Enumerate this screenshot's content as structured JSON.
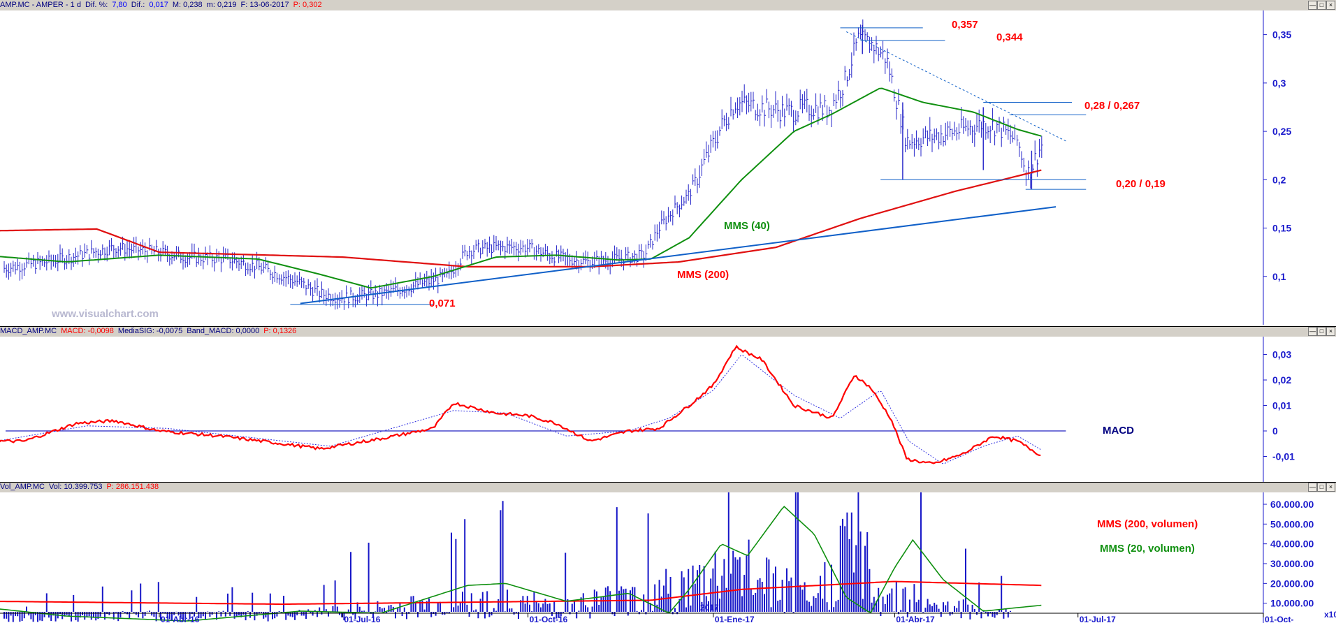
{
  "price_header": [
    {
      "text": "AMP.MC - AMPER - 1 d",
      "cls": "dk"
    },
    {
      "text": "Dif. %:",
      "cls": "dk"
    },
    {
      "text": "7,80",
      "cls": "bl"
    },
    {
      "text": "Dif.:",
      "cls": "dk"
    },
    {
      "text": "0,017",
      "cls": "bl"
    },
    {
      "text": "M: 0,238",
      "cls": "dk"
    },
    {
      "text": "m: 0,219",
      "cls": "dk"
    },
    {
      "text": "F: 13-06-2017",
      "cls": "dk"
    },
    {
      "text": "P: 0,302",
      "cls": "rd"
    }
  ],
  "macd_header": [
    {
      "text": "MACD_AMP.MC",
      "cls": "dk"
    },
    {
      "text": "MACD: -0,0098",
      "cls": "rd"
    },
    {
      "text": "MediaSIG: -0,0075",
      "cls": "dk"
    },
    {
      "text": "Band_MACD: 0,0000",
      "cls": "dk"
    },
    {
      "text": "P: 0,1326",
      "cls": "rd"
    }
  ],
  "vol_header": [
    {
      "text": "Vol_AMP.MC",
      "cls": "dk"
    },
    {
      "text": "Vol: 10.399.753",
      "cls": "dk"
    },
    {
      "text": "P: 286.151.438",
      "cls": "rd"
    }
  ],
  "watermark": "www.visualchart.com",
  "window_buttons": [
    "—",
    "□",
    "×"
  ],
  "x_axis_labels": [
    "01-Abr-16",
    "01-Jul-16",
    "01-Oct-16",
    "01-Ene-17",
    "01-Abr-17",
    "01-Jul-17",
    "01-Oct-"
  ],
  "year_marker": "2017",
  "scale_marker": "x10",
  "annotations": {
    "p357": "0,357",
    "p344": "0,344",
    "p28": "0,28 / 0,267",
    "p20": "0,20 / 0,19",
    "p071": "0,071",
    "mms40": "MMS (40)",
    "mms200": "MMS (200)",
    "macd": "MACD",
    "vol200": "MMS (200, volumen)",
    "vol20": "MMS (20, volumen)"
  },
  "colors": {
    "price": "#2323c8",
    "mms40": "#109010",
    "mms200": "#e01010",
    "trend": "#1060c8",
    "axis": "#1a1acc",
    "signal": "#3030e0"
  },
  "chart_data": [
    {
      "type": "line",
      "title": "AMP.MC - AMPER - 1 d",
      "x_range": [
        "2016-01-04",
        "2017-10-05"
      ],
      "ylim": [
        0.05,
        0.375
      ],
      "yticks": [
        0.1,
        0.15,
        0.2,
        0.25,
        0.3,
        0.35
      ],
      "ytick_labels": [
        "0,1",
        "0,15",
        "0,2",
        "0,25",
        "0,3",
        "0,35"
      ],
      "series": [
        {
          "name": "price",
          "type": "ohlc-bars",
          "x": [
            "2016-01-04",
            "2016-01-20",
            "2016-02-05",
            "2016-02-22",
            "2016-03-10",
            "2016-03-31",
            "2016-04-15",
            "2016-05-05",
            "2016-05-20",
            "2016-06-08",
            "2016-06-20",
            "2016-07-01",
            "2016-07-20",
            "2016-08-05",
            "2016-08-22",
            "2016-09-01",
            "2016-09-15",
            "2016-09-30",
            "2016-10-15",
            "2016-10-31",
            "2016-11-15",
            "2016-11-28",
            "2016-12-05",
            "2016-12-12",
            "2016-12-20",
            "2016-12-28",
            "2017-01-05",
            "2017-01-12",
            "2017-01-25",
            "2017-02-07",
            "2017-02-20",
            "2017-02-27",
            "2017-03-07",
            "2017-03-14",
            "2017-03-21",
            "2017-03-28",
            "2017-04-07",
            "2017-04-20",
            "2017-05-01",
            "2017-05-15",
            "2017-05-22",
            "2017-06-01",
            "2017-06-06",
            "2017-06-13"
          ],
          "values": [
            0.105,
            0.11,
            0.115,
            0.122,
            0.13,
            0.125,
            0.12,
            0.118,
            0.11,
            0.095,
            0.082,
            0.078,
            0.082,
            0.09,
            0.1,
            0.127,
            0.13,
            0.13,
            0.12,
            0.115,
            0.118,
            0.122,
            0.15,
            0.168,
            0.185,
            0.22,
            0.255,
            0.28,
            0.275,
            0.27,
            0.275,
            0.272,
            0.3,
            0.345,
            0.34,
            0.325,
            0.24,
            0.245,
            0.25,
            0.258,
            0.255,
            0.24,
            0.205,
            0.236
          ]
        },
        {
          "name": "MMS (40)",
          "x": [
            "2016-01-04",
            "2016-02-15",
            "2016-04-01",
            "2016-05-20",
            "2016-06-20",
            "2016-07-15",
            "2016-08-15",
            "2016-09-15",
            "2016-10-15",
            "2016-11-15",
            "2016-12-01",
            "2016-12-20",
            "2017-01-15",
            "2017-02-10",
            "2017-03-01",
            "2017-03-25",
            "2017-04-15",
            "2017-05-10",
            "2017-06-01",
            "2017-06-13"
          ],
          "values": [
            0.122,
            0.115,
            0.122,
            0.118,
            0.102,
            0.088,
            0.1,
            0.12,
            0.122,
            0.117,
            0.118,
            0.14,
            0.2,
            0.25,
            0.268,
            0.295,
            0.28,
            0.27,
            0.252,
            0.245
          ]
        },
        {
          "name": "MMS (200)",
          "x": [
            "2016-01-04",
            "2016-03-01",
            "2016-04-01",
            "2016-07-01",
            "2016-09-01",
            "2016-11-01",
            "2016-12-15",
            "2017-02-01",
            "2017-03-15",
            "2017-05-01",
            "2017-06-13"
          ],
          "values": [
            0.147,
            0.149,
            0.125,
            0.12,
            0.11,
            0.11,
            0.115,
            0.13,
            0.16,
            0.188,
            0.21
          ]
        },
        {
          "name": "trend",
          "x": [
            "2016-06-10",
            "2017-06-20"
          ],
          "values": [
            0.072,
            0.172
          ]
        },
        {
          "name": "downtrend",
          "x": [
            "2017-03-08",
            "2017-06-25"
          ],
          "values": [
            0.353,
            0.24
          ]
        }
      ],
      "levels": [
        {
          "value": 0.357,
          "from": "2017-03-05",
          "to": "2017-04-15"
        },
        {
          "value": 0.344,
          "from": "2017-03-15",
          "to": "2017-04-26"
        },
        {
          "value": 0.28,
          "from": "2017-05-15",
          "to": "2017-06-28"
        },
        {
          "value": 0.267,
          "from": "2017-05-28",
          "to": "2017-07-05"
        },
        {
          "value": 0.2,
          "from": "2017-03-25",
          "to": "2017-07-05"
        },
        {
          "value": 0.19,
          "from": "2017-06-05",
          "to": "2017-07-05"
        },
        {
          "value": 0.071,
          "from": "2016-06-05",
          "to": "2016-08-15"
        }
      ]
    },
    {
      "type": "line",
      "title": "MACD_AMP.MC",
      "ylim": [
        -0.02,
        0.037
      ],
      "yticks": [
        -0.01,
        0,
        0.01,
        0.02,
        0.03
      ],
      "ytick_labels": [
        "-0,01",
        "0",
        "0,01",
        "0,02",
        "0,03"
      ],
      "series": [
        {
          "name": "MACD",
          "x": [
            "2016-01-04",
            "2016-01-25",
            "2016-02-20",
            "2016-03-10",
            "2016-04-01",
            "2016-05-01",
            "2016-06-01",
            "2016-06-20",
            "2016-07-20",
            "2016-08-15",
            "2016-08-25",
            "2016-09-15",
            "2016-10-01",
            "2016-10-15",
            "2016-11-01",
            "2016-11-20",
            "2016-12-05",
            "2016-12-20",
            "2017-01-01",
            "2017-01-12",
            "2017-01-25",
            "2017-02-10",
            "2017-03-01",
            "2017-03-12",
            "2017-03-20",
            "2017-03-30",
            "2017-04-07",
            "2017-04-20",
            "2017-05-05",
            "2017-05-20",
            "2017-06-01",
            "2017-06-13"
          ],
          "values": [
            -0.004,
            -0.004,
            0.003,
            0.004,
            0,
            -0.002,
            -0.005,
            -0.007,
            -0.003,
            0.001,
            0.011,
            0.007,
            0.006,
            0.003,
            -0.004,
            0,
            0.001,
            0.01,
            0.018,
            0.033,
            0.028,
            0.01,
            0.005,
            0.022,
            0.017,
            0.005,
            -0.011,
            -0.013,
            -0.009,
            -0.002,
            -0.004,
            -0.0098
          ]
        },
        {
          "name": "MediaSIG",
          "x": [
            "2016-01-04",
            "2016-02-25",
            "2016-04-05",
            "2016-06-25",
            "2016-08-25",
            "2016-09-20",
            "2016-10-20",
            "2016-11-20",
            "2016-12-10",
            "2017-01-01",
            "2017-01-15",
            "2017-02-10",
            "2017-03-05",
            "2017-03-25",
            "2017-04-08",
            "2017-04-25",
            "2017-05-15",
            "2017-06-01",
            "2017-06-13"
          ],
          "values": [
            -0.005,
            0.002,
            0.001,
            -0.006,
            0.008,
            0.007,
            -0.002,
            0,
            0.005,
            0.016,
            0.03,
            0.014,
            0.005,
            0.016,
            -0.004,
            -0.013,
            -0.006,
            -0.002,
            -0.0075
          ]
        },
        {
          "name": "Band_MACD",
          "x": [
            "2016-01-04",
            "2017-06-25"
          ],
          "values": [
            0,
            0
          ]
        }
      ]
    },
    {
      "type": "bar",
      "title": "Vol_AMP.MC",
      "ylim": [
        0,
        66000000
      ],
      "yticks": [
        10000000,
        20000000,
        30000000,
        40000000,
        50000000,
        60000000
      ],
      "ytick_labels": [
        "10.000.00",
        "20.000.00",
        "30.000.00",
        "40.000.00",
        "50.000.00",
        "60.000.00"
      ],
      "series": [
        {
          "name": "volume",
          "x": [
            "2016-01-20",
            "2016-03-20",
            "2016-06-05",
            "2016-09-01",
            "2016-10-20",
            "2016-12-20",
            "2017-01-10",
            "2017-02-20",
            "2017-03-10",
            "2017-03-25",
            "2017-04-20",
            "2017-05-20",
            "2017-06-13"
          ],
          "values": [
            3000000,
            5000000,
            5000000,
            15000000,
            12000000,
            25000000,
            40000000,
            14000000,
            60000000,
            20000000,
            15000000,
            6000000,
            10399753
          ]
        },
        {
          "name": "MMS (20, volumen)",
          "x": [
            "2016-01-04",
            "2016-02-15",
            "2016-04-15",
            "2016-06-10",
            "2016-07-20",
            "2016-09-01",
            "2016-09-20",
            "2016-10-20",
            "2016-11-20",
            "2016-12-10",
            "2016-12-20",
            "2017-01-05",
            "2017-01-18",
            "2017-02-05",
            "2017-02-20",
            "2017-03-08",
            "2017-03-20",
            "2017-04-01",
            "2017-04-10",
            "2017-04-25",
            "2017-05-15",
            "2017-06-13"
          ],
          "values": [
            8000000,
            3500000,
            1000000,
            6000000,
            5000000,
            19000000,
            20000000,
            11000000,
            15000000,
            5000000,
            17000000,
            40000000,
            34000000,
            59000000,
            45000000,
            13000000,
            5000000,
            28000000,
            42000000,
            22000000,
            6000000,
            9000000
          ]
        },
        {
          "name": "MMS (200, volumen)",
          "x": [
            "2016-01-04",
            "2016-06-01",
            "2016-12-01",
            "2017-01-15",
            "2017-04-01",
            "2017-06-13"
          ],
          "values": [
            11000000,
            9500000,
            11500000,
            17000000,
            21000000,
            19000000
          ]
        }
      ]
    }
  ]
}
